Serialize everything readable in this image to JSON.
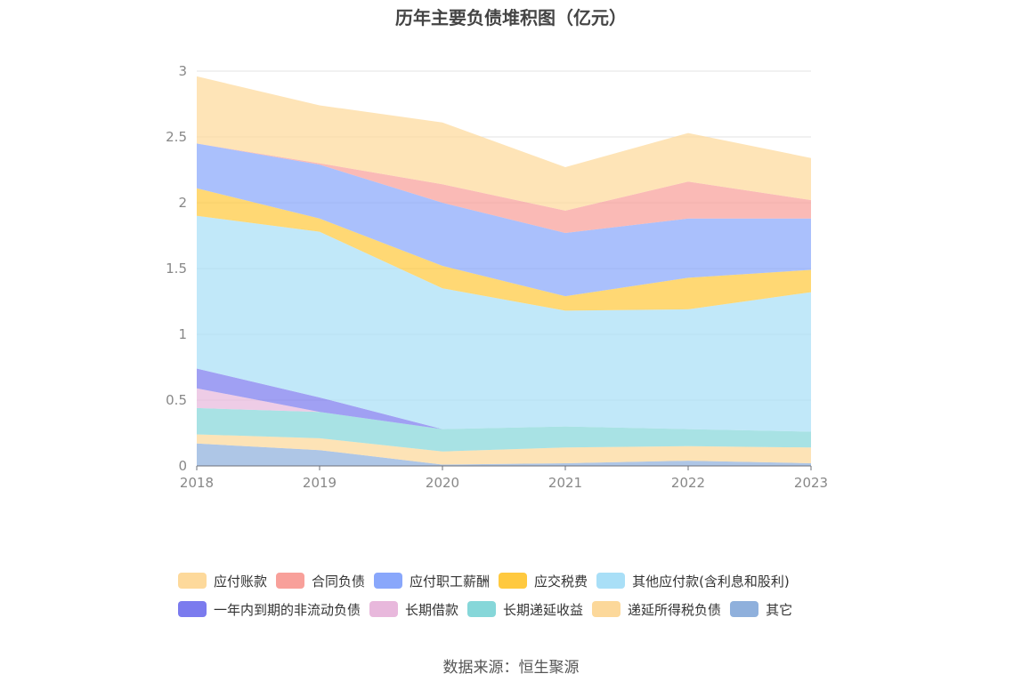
{
  "title": "历年主要负债堆积图（亿元）",
  "source": "数据来源：恒生聚源",
  "chart_data": {
    "type": "area",
    "stacked": true,
    "title": "历年主要负债堆积图（亿元）",
    "x": [
      "2018",
      "2019",
      "2020",
      "2021",
      "2022",
      "2023"
    ],
    "y_ticks": [
      "0",
      "0.5",
      "1",
      "1.5",
      "2",
      "2.5",
      "3"
    ],
    "ylim": [
      0,
      3
    ],
    "grid": true,
    "legend_position": "bottom",
    "series": [
      {
        "name": "其它",
        "color": "#8fb0dc",
        "values": [
          0.17,
          0.12,
          0.01,
          0.02,
          0.04,
          0.02
        ]
      },
      {
        "name": "递延所得税负债",
        "color": "#fcd89a",
        "values": [
          0.07,
          0.09,
          0.1,
          0.12,
          0.11,
          0.12
        ]
      },
      {
        "name": "长期递延收益",
        "color": "#86d7d9",
        "values": [
          0.2,
          0.2,
          0.17,
          0.16,
          0.13,
          0.12
        ]
      },
      {
        "name": "长期借款",
        "color": "#e8b8dc",
        "values": [
          0.15,
          0.0,
          0.0,
          0.0,
          0.0,
          0.0
        ]
      },
      {
        "name": "一年内到期的非流动负债",
        "color": "#7b7bee",
        "values": [
          0.15,
          0.11,
          0.0,
          0.0,
          0.0,
          0.0
        ]
      },
      {
        "name": "其他应付款(含利息和股利)",
        "color": "#a9dff7",
        "values": [
          1.16,
          1.26,
          1.07,
          0.88,
          0.91,
          1.06
        ]
      },
      {
        "name": "应交税费",
        "color": "#ffc93f",
        "values": [
          0.21,
          0.1,
          0.17,
          0.11,
          0.24,
          0.17
        ]
      },
      {
        "name": "应付职工薪酬",
        "color": "#89a7fb",
        "values": [
          0.34,
          0.41,
          0.48,
          0.48,
          0.45,
          0.39
        ]
      },
      {
        "name": "合同负债",
        "color": "#f8a09a",
        "values": [
          0.0,
          0.01,
          0.14,
          0.17,
          0.28,
          0.14
        ]
      },
      {
        "name": "应付账款",
        "color": "#fdd99b",
        "values": [
          0.51,
          0.44,
          0.47,
          0.33,
          0.37,
          0.32
        ]
      }
    ]
  },
  "legend": {
    "rows": [
      [
        {
          "label": "应付账款",
          "color": "#fdd99b"
        },
        {
          "label": "合同负债",
          "color": "#f8a09a"
        },
        {
          "label": "应付职工薪酬",
          "color": "#89a7fb"
        },
        {
          "label": "应交税费",
          "color": "#ffc93f"
        },
        {
          "label": "其他应付款(含利息和股利)",
          "color": "#a9dff7"
        }
      ],
      [
        {
          "label": "一年内到期的非流动负债",
          "color": "#7b7bee"
        },
        {
          "label": "长期借款",
          "color": "#e8b8dc"
        },
        {
          "label": "长期递延收益",
          "color": "#86d7d9"
        },
        {
          "label": "递延所得税负债",
          "color": "#fcd89a"
        },
        {
          "label": "其它",
          "color": "#8fb0dc"
        }
      ]
    ]
  }
}
